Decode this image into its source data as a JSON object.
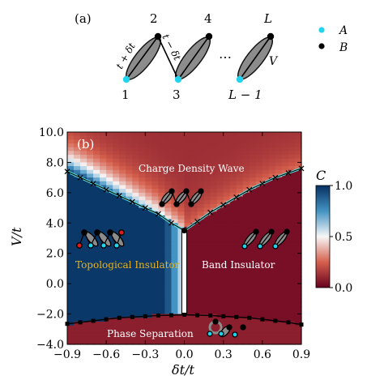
{
  "panel_a": {
    "label": "(a)",
    "sites_top": [
      "2",
      "4",
      "L"
    ],
    "sites_bottom": [
      "1",
      "3",
      "L − 1"
    ],
    "ellipsis": "⋯",
    "bond_labels": [
      "t + δt",
      "t − δt",
      "V"
    ],
    "legend": [
      {
        "name": "A",
        "color": "#22d3ee"
      },
      {
        "name": "B",
        "color": "#000000"
      }
    ]
  },
  "panel_b": {
    "label": "(b)",
    "regions": {
      "cdw": "Charge Density Wave",
      "ti": "Topological Insulator",
      "bi": "Band Insulator",
      "ps": "Phase Separation"
    },
    "colors": {
      "cdw": "#ffffff",
      "ti": "#e8b320",
      "bi": "#ffffff",
      "ps": "#ffffff",
      "boundary": "#5ee6e6"
    }
  },
  "chart_data": {
    "type": "heatmap",
    "xlabel": "δt/t",
    "ylabel": "V/t",
    "colorbar_label": "C",
    "xlim": [
      -0.9,
      0.9
    ],
    "ylim": [
      -4.0,
      10.0
    ],
    "x_ticks": [
      "−0.9",
      "−0.6",
      "−0.3",
      "0.0",
      "0.3",
      "0.6",
      "0.9"
    ],
    "y_ticks": [
      "−4.0",
      "−2.0",
      "0.0",
      "2.0",
      "4.0",
      "6.0",
      "8.0",
      "10.0"
    ],
    "colorbar_ticks": [
      "0.0",
      "0.5",
      "1.0"
    ],
    "clim": [
      0.0,
      1.0
    ],
    "colormap": [
      "#67001f",
      "#f7f7f7",
      "#053061"
    ],
    "cdw_boundary": {
      "x": [
        -0.9,
        -0.8,
        -0.7,
        -0.6,
        -0.5,
        -0.4,
        -0.3,
        -0.2,
        -0.1,
        0.0,
        0.1,
        0.2,
        0.3,
        0.4,
        0.5,
        0.6,
        0.7,
        0.8,
        0.9
      ],
      "y": [
        7.4,
        7.0,
        6.6,
        6.2,
        5.8,
        5.4,
        5.0,
        4.6,
        4.0,
        3.5,
        4.1,
        4.7,
        5.2,
        5.7,
        6.2,
        6.6,
        7.0,
        7.3,
        7.6
      ]
    },
    "ps_boundary": {
      "x": [
        -0.9,
        -0.8,
        -0.7,
        -0.6,
        -0.5,
        -0.4,
        -0.3,
        -0.2,
        -0.1,
        0.0,
        0.1,
        0.2,
        0.3,
        0.4,
        0.5,
        0.6,
        0.7,
        0.8,
        0.9
      ],
      "y": [
        -2.65,
        -2.55,
        -2.45,
        -2.35,
        -2.25,
        -2.2,
        -2.15,
        -2.1,
        -2.08,
        -2.05,
        -2.08,
        -2.1,
        -2.15,
        -2.2,
        -2.25,
        -2.35,
        -2.45,
        -2.55,
        -2.7
      ]
    },
    "gap_line_x": 0.0
  }
}
